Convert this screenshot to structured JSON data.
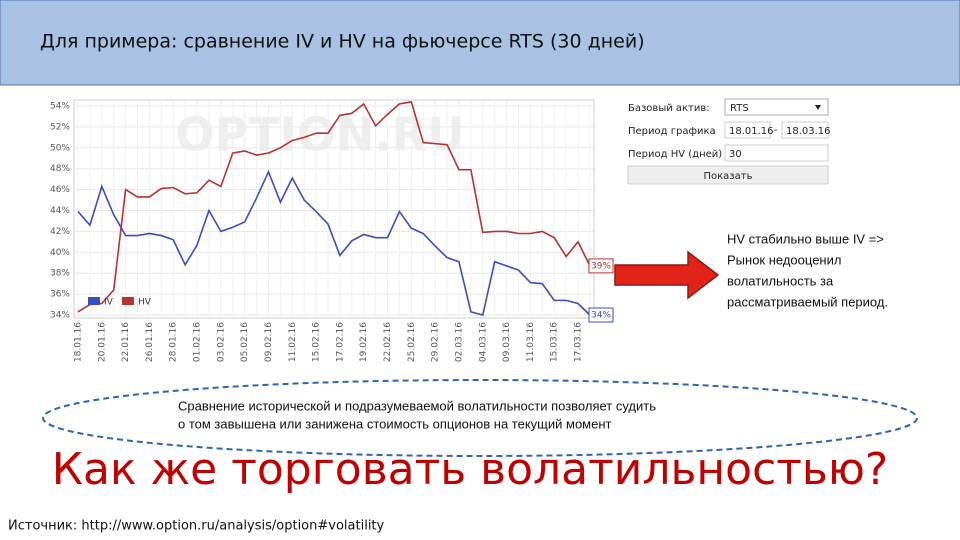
{
  "slide": {
    "title": "Для примера: сравнение IV и HV на фьючерсе RTS (30 дней)",
    "note_lines": [
      "HV стабильно выше IV =>",
      "Рынок недооценил",
      "волатильность за",
      "рассматриваемый период."
    ],
    "ellipse_lines": [
      "Сравнение исторической и подразумеваемой волатильности позволяет судить",
      "о том завышена или занижена стоимость опционов на текущий момент"
    ],
    "heading": "Как же торговать волатильностью?",
    "source": "Источник: http://www.option.ru/analysis/option#volatility"
  },
  "form": {
    "asset_label": "Базовый актив:",
    "asset_value": "RTS",
    "period_label": "Период графика",
    "period_from": "18.01.16",
    "period_sep": "-",
    "period_to": "18.03.16",
    "hv_label": "Период HV (дней)",
    "hv_value": "30",
    "button": "Показать"
  },
  "chart_data": {
    "type": "line",
    "watermark": "OPTION.RU",
    "categories": [
      "18.01.16",
      null,
      "20.01.16",
      null,
      "22.01.16",
      null,
      "26.01.16",
      null,
      "28.01.16",
      null,
      "01.02.16",
      null,
      "03.02.16",
      null,
      "05.02.16",
      null,
      "09.02.16",
      null,
      "11.02.16",
      null,
      "15.02.16",
      null,
      "17.02.16",
      null,
      "19.02.16",
      null,
      "22.02.16",
      null,
      "25.02.16",
      null,
      "29.02.16",
      null,
      "02.03.16",
      null,
      "04.03.16",
      null,
      "09.03.16",
      null,
      "11.03.16",
      null,
      "15.03.16",
      null,
      "17.03.16",
      null
    ],
    "series": [
      {
        "name": "IV",
        "color": "#3a4ec0",
        "end_label": "34%",
        "values": [
          43.9,
          42.6,
          46.3,
          43.6,
          41.6,
          41.6,
          41.8,
          41.6,
          41.2,
          38.8,
          40.7,
          44.0,
          42.0,
          42.4,
          42.9,
          45.2,
          47.7,
          44.8,
          47.1,
          45.0,
          43.9,
          42.7,
          39.7,
          41.1,
          41.7,
          41.4,
          41.4,
          43.9,
          42.3,
          41.8,
          40.6,
          39.5,
          39.1,
          34.3,
          34.0,
          39.1,
          38.7,
          38.3,
          37.1,
          37.0,
          35.4,
          35.4,
          35.1,
          34.0
        ]
      },
      {
        "name": "HV",
        "color": "#b83232",
        "end_label": "39%",
        "values": [
          34.3,
          35.0,
          35.1,
          36.4,
          46.0,
          45.3,
          45.3,
          46.1,
          46.2,
          45.6,
          45.7,
          46.9,
          46.3,
          49.5,
          49.7,
          49.3,
          49.5,
          50.0,
          50.7,
          51.0,
          51.4,
          51.4,
          53.1,
          53.3,
          54.2,
          52.1,
          53.2,
          54.2,
          54.4,
          50.5,
          50.4,
          50.3,
          47.9,
          47.9,
          41.9,
          42.0,
          42.0,
          41.8,
          41.8,
          42.0,
          41.4,
          39.6,
          41.0,
          38.7
        ]
      }
    ],
    "ylim": [
      34,
      54
    ],
    "yticks": [
      {
        "value": 34,
        "label": "34%"
      },
      {
        "value": 36,
        "label": "36%"
      },
      {
        "value": 38,
        "label": "38%"
      },
      {
        "value": 40,
        "label": "40%"
      },
      {
        "value": 42,
        "label": "42%"
      },
      {
        "value": 44,
        "label": "44%"
      },
      {
        "value": 46,
        "label": "46%"
      },
      {
        "value": 48,
        "label": "48%"
      },
      {
        "value": 50,
        "label": "50%"
      },
      {
        "value": 52,
        "label": "52%"
      },
      {
        "value": 54,
        "label": "54%"
      }
    ],
    "grid": true,
    "legend": "bottom-left"
  }
}
